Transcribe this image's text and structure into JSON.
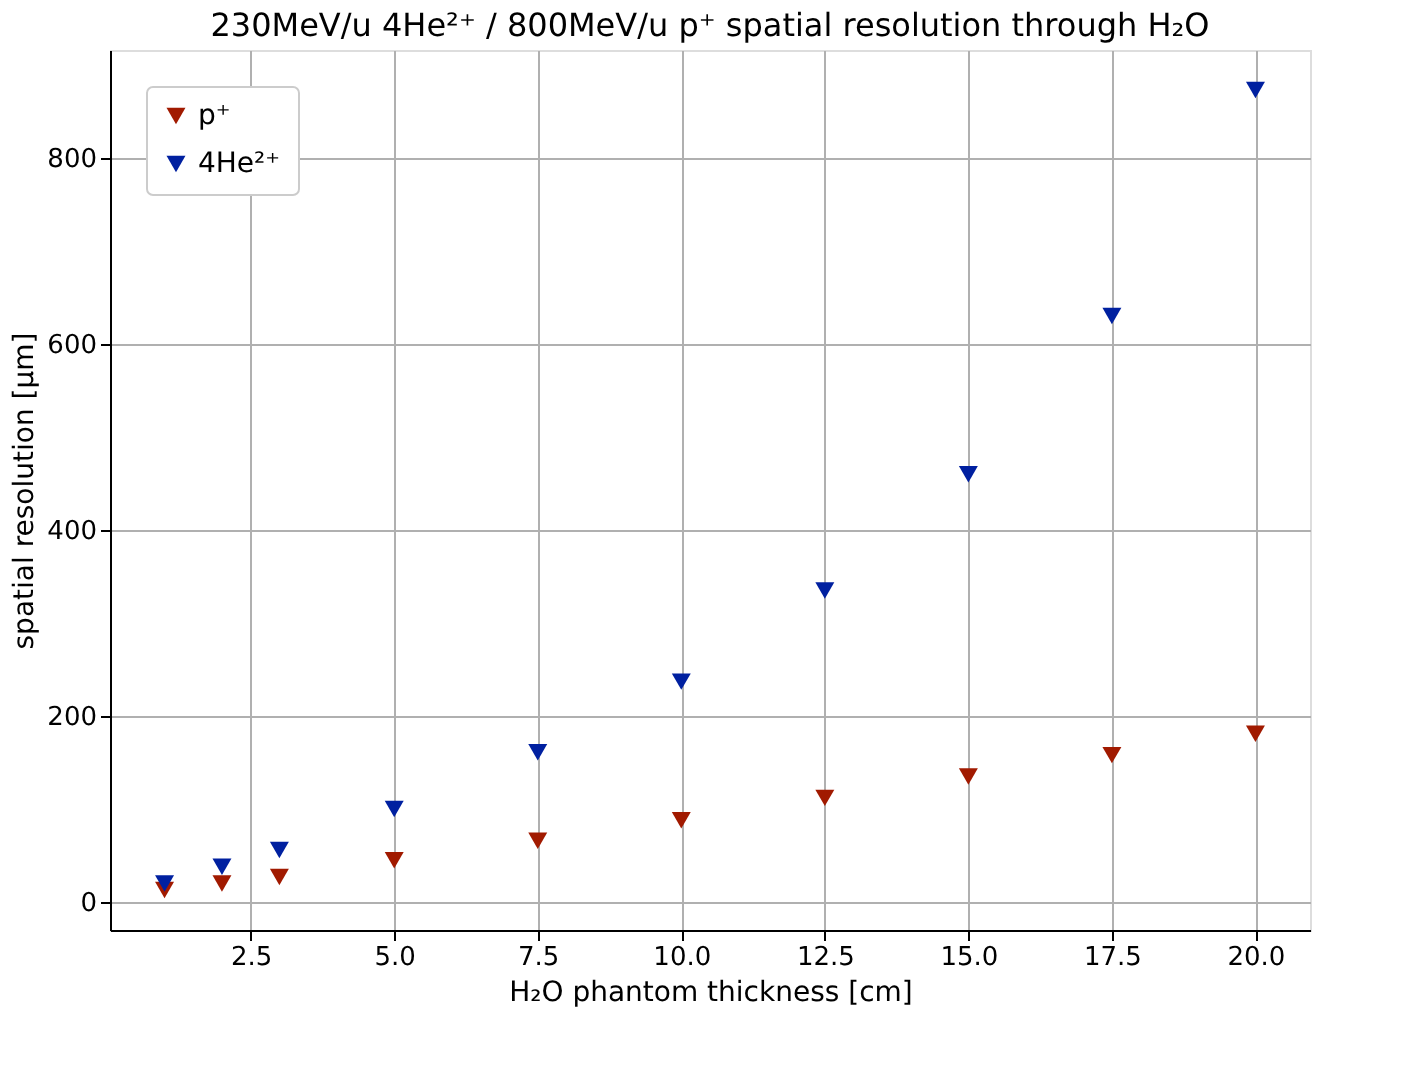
{
  "chart_data": {
    "type": "scatter",
    "title": "230MeV/u 4He²⁺ / 800MeV/u p⁺ spatial resolution through H₂O",
    "xlabel": "H₂O phantom thickness [cm]",
    "ylabel": "spatial resolution [µm]",
    "x": [
      1,
      2,
      3,
      5,
      7.5,
      10,
      12.5,
      15,
      17.5,
      20
    ],
    "series": [
      {
        "name": "p⁺",
        "color": "#a11a00",
        "values": [
          13,
          20,
          27,
          45,
          66,
          88,
          112,
          135,
          158,
          181
        ]
      },
      {
        "name": "4He²⁺",
        "color": "#0020a0",
        "values": [
          20,
          38,
          56,
          100,
          161,
          237,
          335,
          460,
          630,
          873
        ]
      }
    ],
    "xlim": [
      0.05,
      20.95
    ],
    "ylim": [
      -30,
      916
    ],
    "xticks": [
      2.5,
      {
        "value": 5,
        "label": "5.0"
      },
      7.5,
      {
        "value": 10,
        "label": "10.0"
      },
      12.5,
      {
        "value": 15,
        "label": "15.0"
      },
      17.5,
      {
        "value": 20,
        "label": "20.0"
      }
    ],
    "yticks": [
      0,
      200,
      400,
      600,
      800
    ],
    "grid": true,
    "legend": "top left",
    "marker": "triangle"
  }
}
